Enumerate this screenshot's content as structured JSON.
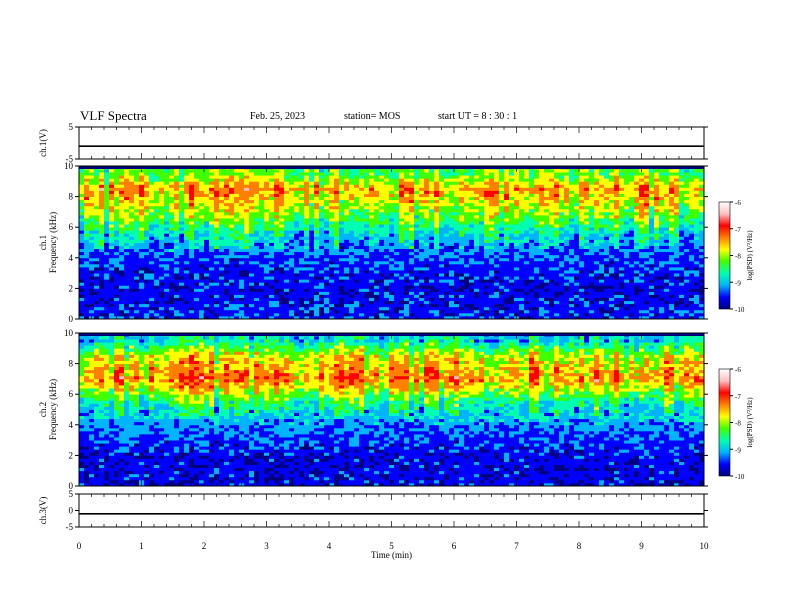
{
  "header": {
    "title": "VLF Spectra",
    "date": "Feb. 25, 2023",
    "station": "station= MOS",
    "start": "start  UT  =   8  : 30 : 1"
  },
  "chart_data": [
    {
      "type": "line",
      "panel": "ch1-waveform",
      "ylabel": "ch.1(V)",
      "ylim": [
        -5,
        5
      ],
      "y_ticks": [
        "5",
        "-5"
      ],
      "series": [
        {
          "values": [
            -1,
            -1,
            -1,
            -1,
            -1,
            -1,
            -1,
            -1,
            -1,
            -1,
            -1
          ]
        }
      ]
    },
    {
      "type": "heatmap",
      "panel": "ch1-spectrogram",
      "ylabel": "Frequency (kHz)",
      "channel_label": "ch.1",
      "ylim": [
        0,
        10
      ],
      "y_ticks": [
        "0",
        "2",
        "4",
        "6",
        "8",
        "10"
      ],
      "colorbar": {
        "label": "log(PSD) (V²/Hz)",
        "range": [
          -10,
          -6
        ],
        "ticks": [
          "-6",
          "-7",
          "-8",
          "-9",
          "-10"
        ],
        "colors": [
          "#000080",
          "#0000ff",
          "#00b4ff",
          "#00ffb0",
          "#40ff00",
          "#ffff00",
          "#ff8000",
          "#ff0000",
          "#ffc0c0",
          "#ffffff"
        ]
      },
      "band_levels_by_freq_kHz": [
        {
          "f": 0.5,
          "level": -9.3
        },
        {
          "f": 2,
          "level": -9.4
        },
        {
          "f": 4,
          "level": -9.2
        },
        {
          "f": 5.5,
          "level": -8.6
        },
        {
          "f": 7,
          "level": -7.8
        },
        {
          "f": 8.5,
          "level": -7.2
        },
        {
          "f": 9.5,
          "level": -8.0
        }
      ]
    },
    {
      "type": "heatmap",
      "panel": "ch2-spectrogram",
      "ylabel": "Frequency (kHz)",
      "channel_label": "ch.2",
      "ylim": [
        0,
        10
      ],
      "y_ticks": [
        "0",
        "2",
        "4",
        "6",
        "8",
        "10"
      ],
      "colorbar": {
        "label": "log(PSD) (V²/Hz)",
        "range": [
          -10,
          -6
        ],
        "ticks": [
          "-6",
          "-7",
          "-8",
          "-9",
          "-10"
        ],
        "colors": [
          "#000080",
          "#0000ff",
          "#00b4ff",
          "#00ffb0",
          "#40ff00",
          "#ffff00",
          "#ff8000",
          "#ff0000",
          "#ffc0c0",
          "#ffffff"
        ]
      },
      "band_levels_by_freq_kHz": [
        {
          "f": 0.5,
          "level": -9.4
        },
        {
          "f": 2,
          "level": -9.4
        },
        {
          "f": 4,
          "level": -9.0
        },
        {
          "f": 5.5,
          "level": -8.3
        },
        {
          "f": 7,
          "level": -7.1
        },
        {
          "f": 8.5,
          "level": -7.6
        },
        {
          "f": 9.5,
          "level": -8.6
        }
      ]
    },
    {
      "type": "line",
      "panel": "ch3-waveform",
      "ylabel": "ch.3(V)",
      "ylim": [
        -5,
        5
      ],
      "y_ticks": [
        "5",
        "0",
        "-5"
      ],
      "series": [
        {
          "values": [
            -1,
            -1,
            -1,
            -1,
            -1,
            -1,
            -1,
            -1,
            -1,
            -1,
            -1
          ]
        }
      ]
    }
  ],
  "xaxis": {
    "label": "Time  (min)",
    "ticks": [
      "0",
      "1",
      "2",
      "3",
      "4",
      "5",
      "6",
      "7",
      "8",
      "9",
      "10"
    ],
    "xlim": [
      0,
      10
    ]
  }
}
